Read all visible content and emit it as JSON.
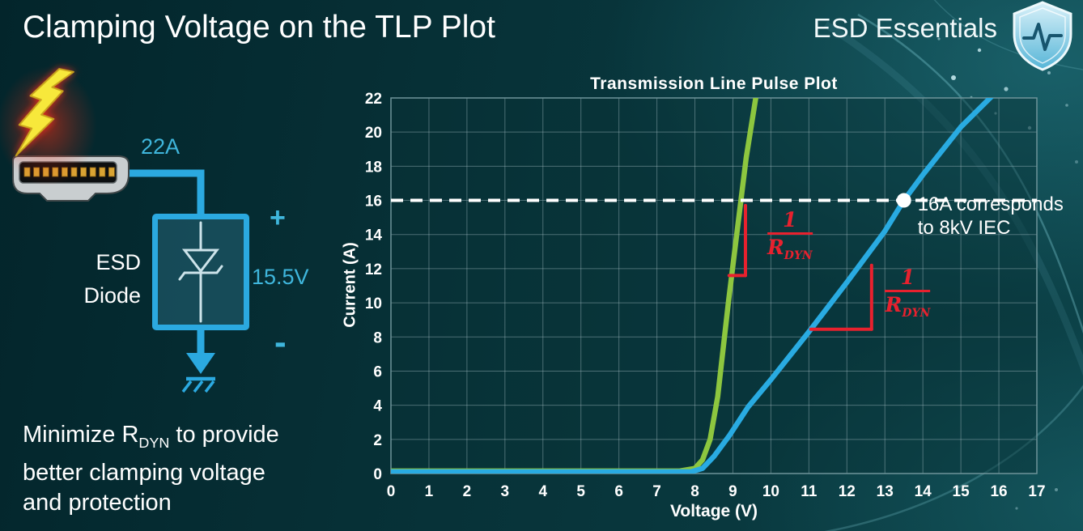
{
  "page": {
    "title": "Clamping Voltage on the TLP Plot",
    "brand": "ESD Essentials"
  },
  "diagram": {
    "current_label": "22A",
    "device_label_line1": "ESD",
    "device_label_line2": "Diode",
    "plus": "+",
    "voltage_label": "15.5V",
    "minus": "-",
    "wire_color": "#2BA9E0",
    "bolt_color": "#F7E83B"
  },
  "note": {
    "line1_prefix": "Minimize R",
    "line1_sub": "DYN",
    "line1_suffix": " to provide",
    "line2": "better clamping voltage",
    "line3": "and protection"
  },
  "chart_data": {
    "type": "line",
    "title": "Transmission Line Pulse Plot",
    "xlabel": "Voltage (V)",
    "ylabel": "Current (A)",
    "xlim": [
      0,
      17
    ],
    "ylim": [
      0,
      22
    ],
    "xticks": [
      0,
      1,
      2,
      3,
      4,
      5,
      6,
      7,
      8,
      9,
      10,
      11,
      12,
      13,
      14,
      15,
      16,
      17
    ],
    "yticks": [
      0,
      2,
      4,
      6,
      8,
      10,
      12,
      14,
      16,
      18,
      20,
      22
    ],
    "grid": true,
    "series": [
      {
        "name": "green-low-rdyn-curve",
        "color": "#8DC63F",
        "x": [
          0,
          7.6,
          8.0,
          8.2,
          8.4,
          8.6,
          8.88,
          9.1,
          9.35,
          9.63
        ],
        "y": [
          0.15,
          0.15,
          0.3,
          0.8,
          2.0,
          4.5,
          10,
          14,
          18.5,
          22.4
        ]
      },
      {
        "name": "blue-high-rdyn-curve",
        "color": "#29ABE2",
        "x": [
          0,
          7.9,
          8.2,
          8.5,
          8.9,
          9.4,
          10,
          11,
          12,
          13,
          13.5,
          14,
          15,
          15.95
        ],
        "y": [
          0.1,
          0.1,
          0.3,
          1.0,
          2.2,
          3.9,
          5.5,
          8.3,
          11.2,
          14.2,
          16,
          17.5,
          20.3,
          22.4
        ]
      }
    ],
    "threshold": {
      "y": 16,
      "line_color": "#FFFFFF",
      "marker": {
        "x": 13.5,
        "y": 16
      },
      "label_line1": "16A corresponds",
      "label_line2": "to 8kV IEC"
    },
    "slope_annotations": [
      {
        "series": "green-low-rdyn-curve",
        "segments": [
          [
            [
              9.33,
              15.7
            ],
            [
              9.33,
              11.6
            ]
          ],
          [
            [
              8.9,
              11.6
            ],
            [
              9.33,
              11.6
            ]
          ]
        ],
        "label_center": [
          10.5,
          13.75
        ]
      },
      {
        "series": "blue-high-rdyn-curve",
        "segments": [
          [
            [
              11.05,
              8.45
            ],
            [
              12.65,
              8.45
            ]
          ],
          [
            [
              12.65,
              8.45
            ],
            [
              12.65,
              12.2
            ]
          ]
        ],
        "label_center": [
          13.6,
          10.4
        ]
      }
    ],
    "slope_label": {
      "numerator": "1",
      "denominator": "R",
      "denominator_sub": "DYN"
    },
    "annotation_color": "#E8212E"
  }
}
